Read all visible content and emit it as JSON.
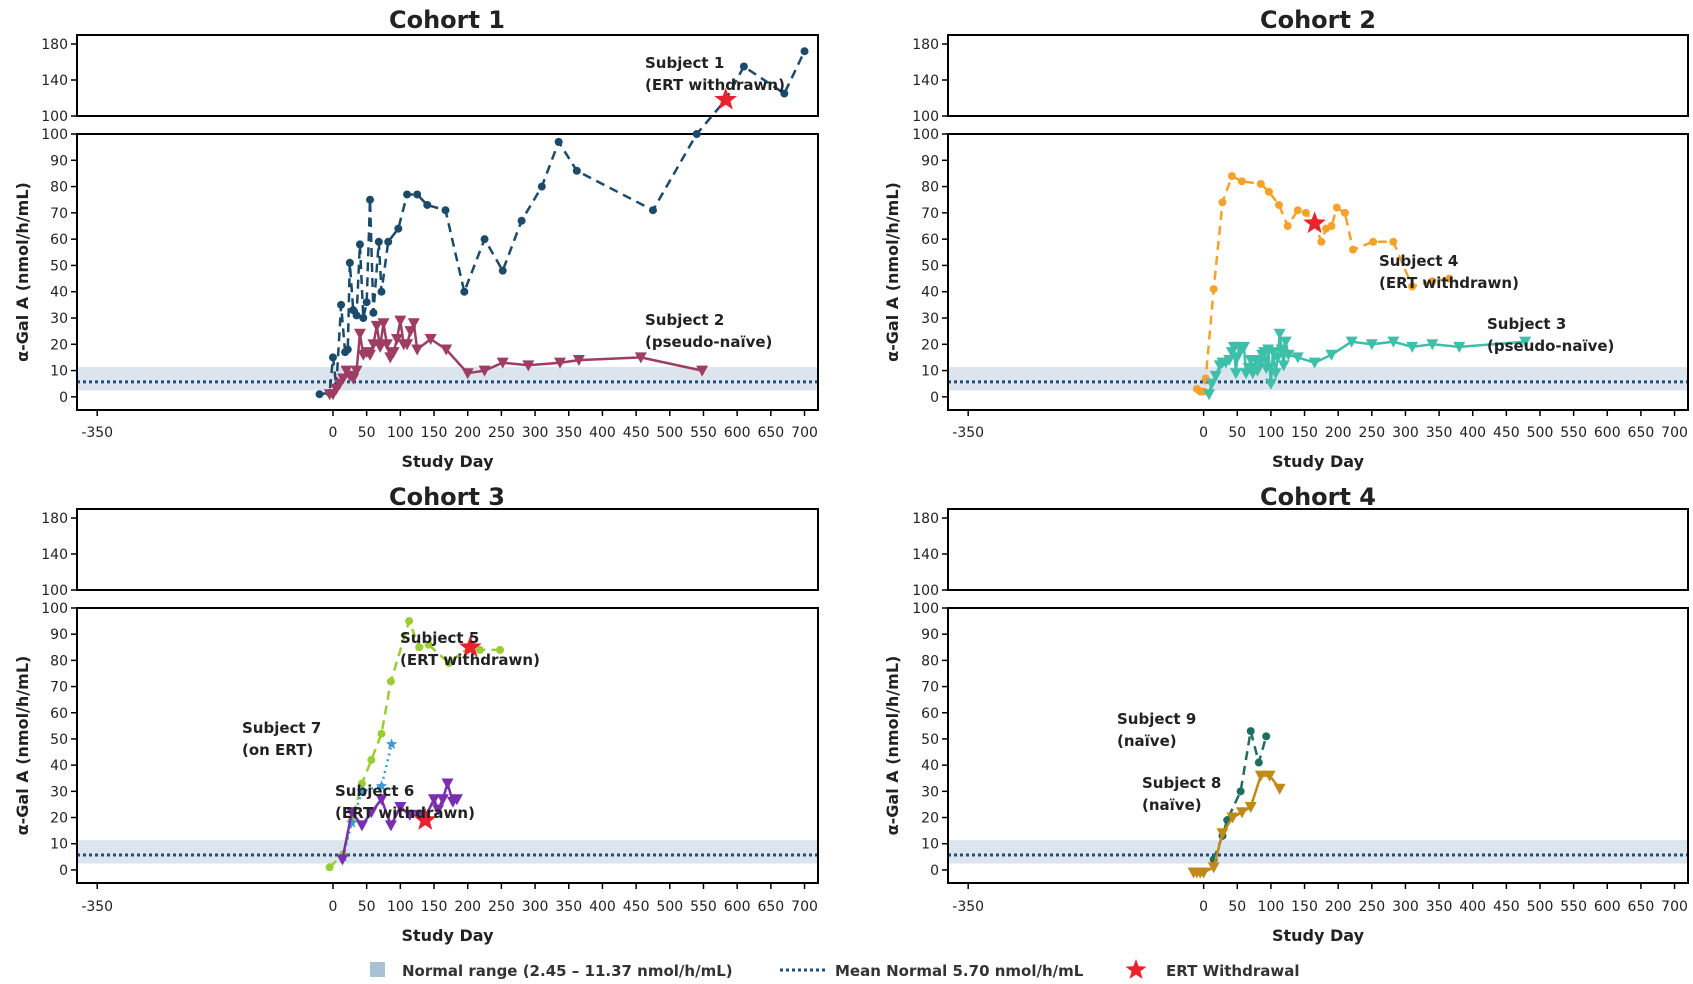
{
  "legend": {
    "normal_range": "Normal range (2.45 – 11.37 nmol/h/mL)",
    "mean_normal": "Mean Normal 5.70 nmol/h/mL",
    "ert_withdrawal": "ERT Withdrawal"
  },
  "colors": {
    "normal_band": "#dce5ee",
    "normal_swatch": "#a9c1d6",
    "mean_line": "#1f4e79",
    "star": "#e8232f",
    "subject1": "#1b4a6b",
    "subject2": "#9e3d62",
    "subject3": "#3dbfa9",
    "subject4": "#f5a22a",
    "subject5": "#9acd32",
    "subject6": "#7a2fae",
    "subject7": "#3a9bd5",
    "subject8": "#c08a1a",
    "subject9": "#1d6e5e"
  },
  "chart_data": [
    {
      "type": "line",
      "title": "Cohort 1",
      "xlabel": "Study Day",
      "ylabel": "α-Gal A (nmol/h/mL)",
      "xlim": [
        -380,
        720
      ],
      "xticks": [
        -350,
        0,
        50,
        100,
        150,
        200,
        250,
        300,
        350,
        400,
        450,
        500,
        550,
        600,
        650,
        700
      ],
      "ylim_lower": [
        -5,
        100
      ],
      "yticks_lower": [
        0,
        10,
        20,
        30,
        40,
        50,
        60,
        70,
        80,
        90,
        100
      ],
      "ylim_upper": [
        100,
        190
      ],
      "yticks_upper": [
        100,
        140,
        180
      ],
      "normal_range": [
        2.45,
        11.37
      ],
      "mean_normal": 5.7,
      "series": [
        {
          "name": "Subject 1",
          "status": "(ERT withdrawn)",
          "colorKey": "subject1",
          "marker": "circle",
          "dash": "dashed",
          "x": [
            -20,
            -5,
            0,
            5,
            12,
            18,
            22,
            25,
            30,
            35,
            40,
            45,
            50,
            55,
            60,
            68,
            72,
            82,
            97,
            110,
            125,
            140,
            167,
            195,
            225,
            252,
            280,
            310,
            335,
            362,
            475,
            540,
            583,
            610,
            670,
            700
          ],
          "y": [
            1,
            1.5,
            15,
            4,
            35,
            17,
            18,
            51,
            33,
            31,
            58,
            30,
            36,
            75,
            32,
            59,
            40,
            59,
            64,
            77,
            77,
            73,
            71,
            40,
            60,
            48,
            67,
            80,
            97,
            86,
            71,
            100,
            118,
            155,
            125,
            172
          ],
          "ert_withdrawal": {
            "x": 583,
            "y": 118
          }
        },
        {
          "name": "Subject 2",
          "status": "(pseudo-naïve)",
          "colorKey": "subject2",
          "marker": "triangle-down",
          "dash": "solid",
          "x": [
            -5,
            0,
            5,
            10,
            15,
            20,
            25,
            30,
            35,
            40,
            45,
            50,
            55,
            60,
            65,
            70,
            75,
            80,
            85,
            90,
            95,
            100,
            105,
            110,
            115,
            120,
            125,
            145,
            168,
            200,
            225,
            252,
            290,
            337,
            365,
            457,
            548
          ],
          "y": [
            1,
            1,
            3,
            5,
            7,
            10,
            8,
            7,
            10,
            24,
            16,
            17,
            16,
            20,
            27,
            19,
            28,
            20,
            15,
            17,
            22,
            29,
            20,
            20,
            25,
            28,
            18,
            22,
            18,
            9,
            10,
            13,
            12,
            13,
            14,
            15,
            10
          ]
        }
      ],
      "annotations": [
        {
          "line1": "Subject 1",
          "line2": "(ERT withdrawn)"
        },
        {
          "line1": "Subject 2",
          "line2": "(pseudo-naïve)"
        }
      ]
    },
    {
      "type": "line",
      "title": "Cohort 2",
      "xlabel": "Study Day",
      "ylabel": "α-Gal A (nmol/h/mL)",
      "xlim": [
        -380,
        720
      ],
      "xticks": [
        -350,
        0,
        50,
        100,
        150,
        200,
        250,
        300,
        350,
        400,
        450,
        500,
        550,
        600,
        650,
        700
      ],
      "ylim_lower": [
        -5,
        100
      ],
      "yticks_lower": [
        0,
        10,
        20,
        30,
        40,
        50,
        60,
        70,
        80,
        90,
        100
      ],
      "ylim_upper": [
        100,
        190
      ],
      "yticks_upper": [
        100,
        140,
        180
      ],
      "normal_range": [
        2.45,
        11.37
      ],
      "mean_normal": 5.7,
      "series": [
        {
          "name": "Subject 4",
          "status": "(ERT withdrawn)",
          "colorKey": "subject4",
          "marker": "circle",
          "dash": "dashed",
          "x": [
            -10,
            -5,
            0,
            3,
            15,
            28,
            42,
            57,
            85,
            97,
            112,
            125,
            140,
            152,
            165,
            175,
            182,
            190,
            198,
            210,
            222,
            252,
            282,
            310,
            340,
            365
          ],
          "y": [
            3,
            2,
            2,
            7,
            41,
            74,
            84,
            82,
            81,
            78,
            73,
            65,
            71,
            70,
            66,
            59,
            64,
            65,
            72,
            70,
            56,
            59,
            59,
            42,
            44,
            45
          ],
          "ert_withdrawal": {
            "x": 165,
            "y": 66
          }
        },
        {
          "name": "Subject 3",
          "status": "(pseudo-naïve)",
          "colorKey": "subject3",
          "marker": "triangle-down",
          "dash": "solid",
          "x": [
            8,
            12,
            18,
            24,
            28,
            33,
            38,
            42,
            45,
            48,
            50,
            53,
            56,
            60,
            63,
            67,
            70,
            73,
            77,
            80,
            84,
            87,
            90,
            93,
            96,
            100,
            103,
            107,
            110,
            113,
            116,
            119,
            122,
            126,
            140,
            165,
            190,
            220,
            250,
            282,
            310,
            340,
            380,
            478
          ],
          "y": [
            1,
            5,
            8,
            12,
            13,
            13,
            14,
            17,
            19,
            9,
            15,
            19,
            18,
            19,
            9,
            11,
            14,
            9,
            14,
            10,
            13,
            16,
            17,
            11,
            18,
            5,
            17,
            9,
            15,
            24,
            18,
            12,
            21,
            16,
            15,
            13,
            16,
            21,
            20,
            21,
            19,
            20,
            19,
            21
          ]
        }
      ],
      "annotations": [
        {
          "line1": "Subject 4",
          "line2": "(ERT withdrawn)"
        },
        {
          "line1": "Subject 3",
          "line2": "(pseudo-naïve)"
        }
      ]
    },
    {
      "type": "line",
      "title": "Cohort 3",
      "xlabel": "Study Day",
      "ylabel": "α-Gal A (nmol/h/mL)",
      "xlim": [
        -380,
        720
      ],
      "xticks": [
        -350,
        0,
        50,
        100,
        150,
        200,
        250,
        300,
        350,
        400,
        450,
        500,
        550,
        600,
        650,
        700
      ],
      "ylim_lower": [
        -5,
        100
      ],
      "yticks_lower": [
        0,
        10,
        20,
        30,
        40,
        50,
        60,
        70,
        80,
        90,
        100
      ],
      "ylim_upper": [
        100,
        190
      ],
      "yticks_upper": [
        100,
        140,
        180
      ],
      "normal_range": [
        2.45,
        11.37
      ],
      "mean_normal": 5.7,
      "series": [
        {
          "name": "Subject 5",
          "status": "(ERT withdrawn)",
          "colorKey": "subject5",
          "marker": "circle",
          "dash": "dashed",
          "x": [
            -5,
            15,
            28,
            43,
            57,
            72,
            86,
            113,
            128,
            142,
            172,
            202,
            218,
            248
          ],
          "y": [
            1,
            6,
            19,
            33,
            42,
            52,
            72,
            95,
            85,
            86,
            79,
            85,
            84,
            84
          ],
          "ert_withdrawal": {
            "x": 204,
            "y": 85
          }
        },
        {
          "name": "Subject 7",
          "status": "(on ERT)",
          "colorKey": "subject7",
          "marker": "star",
          "dash": "dotted",
          "x": [
            15,
            28,
            43,
            72,
            87
          ],
          "y": [
            5,
            18,
            30,
            32,
            48
          ]
        },
        {
          "name": "Subject 6",
          "status": "(ERT withdrawn)",
          "colorKey": "subject6",
          "marker": "triangle-down",
          "dash": "solid",
          "x": [
            14,
            28,
            43,
            57,
            72,
            86,
            100,
            114,
            128,
            135,
            150,
            156,
            163,
            170,
            178,
            184
          ],
          "y": [
            4,
            22,
            17,
            22,
            27,
            17,
            24,
            21,
            21,
            19,
            27,
            23,
            27,
            33,
            26,
            27
          ],
          "ert_withdrawal": {
            "x": 137,
            "y": 19
          }
        }
      ],
      "annotations": [
        {
          "line1": "Subject 5",
          "line2": "(ERT withdrawn)"
        },
        {
          "line1": "Subject 7",
          "line2": "(on ERT)"
        },
        {
          "line1": "Subject 6",
          "line2": "(ERT withdrawn)"
        }
      ]
    },
    {
      "type": "line",
      "title": "Cohort 4",
      "xlabel": "Study Day",
      "ylabel": "α-Gal A (nmol/h/mL)",
      "xlim": [
        -380,
        720
      ],
      "xticks": [
        -350,
        0,
        50,
        100,
        150,
        200,
        250,
        300,
        350,
        400,
        450,
        500,
        550,
        600,
        650,
        700
      ],
      "ylim_lower": [
        -5,
        100
      ],
      "yticks_lower": [
        0,
        10,
        20,
        30,
        40,
        50,
        60,
        70,
        80,
        90,
        100
      ],
      "ylim_upper": [
        100,
        190
      ],
      "yticks_upper": [
        100,
        140,
        180
      ],
      "normal_range": [
        2.45,
        11.37
      ],
      "mean_normal": 5.7,
      "series": [
        {
          "name": "Subject 9",
          "status": "(naïve)",
          "colorKey": "subject9",
          "marker": "circle",
          "dash": "dashed",
          "x": [
            15,
            28,
            35,
            55,
            70,
            82,
            93
          ],
          "y": [
            4,
            13,
            19,
            30,
            53,
            41,
            51
          ]
        },
        {
          "name": "Subject 8",
          "status": "(naïve)",
          "colorKey": "subject8",
          "marker": "triangle-down",
          "dash": "solid",
          "x": [
            -15,
            -10,
            -5,
            0,
            15,
            28,
            43,
            57,
            70,
            85,
            98,
            113
          ],
          "y": [
            -1,
            -1,
            -1,
            -1,
            1,
            14,
            20,
            22,
            24,
            36,
            36,
            31
          ]
        }
      ],
      "annotations": [
        {
          "line1": "Subject 9",
          "line2": "(naïve)"
        },
        {
          "line1": "Subject 8",
          "line2": "(naïve)"
        }
      ]
    }
  ]
}
